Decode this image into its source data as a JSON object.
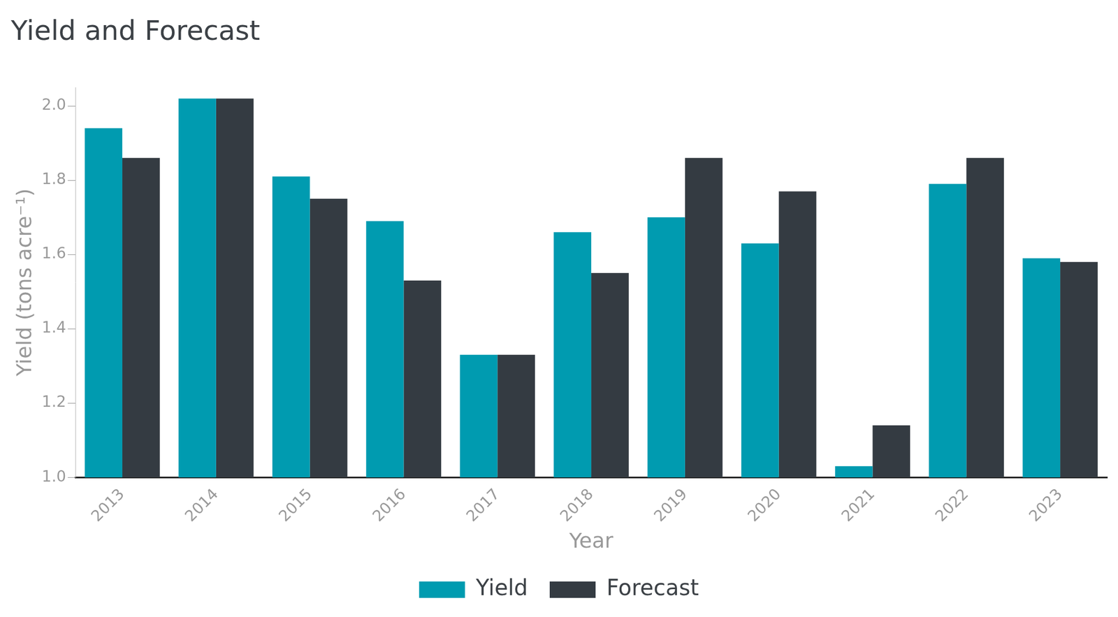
{
  "chart_data": {
    "type": "bar",
    "title": "Yield and Forecast",
    "x_label": "Year",
    "y_label": "Yield (tons acre⁻¹)",
    "categories": [
      "2013",
      "2014",
      "2015",
      "2016",
      "2017",
      "2018",
      "2019",
      "2020",
      "2021",
      "2022",
      "2023"
    ],
    "series": [
      {
        "name": "Yield",
        "color": "#009bb0",
        "values": [
          1.94,
          2.02,
          1.81,
          1.69,
          1.33,
          1.66,
          1.7,
          1.63,
          1.03,
          1.79,
          1.59
        ]
      },
      {
        "name": "Forecast",
        "color": "#343b42",
        "values": [
          1.86,
          2.02,
          1.75,
          1.53,
          1.33,
          1.55,
          1.86,
          1.77,
          1.14,
          1.86,
          1.58
        ]
      }
    ],
    "ylim": [
      1.0,
      2.05
    ],
    "yticks": [
      {
        "value": 1,
        "label": "1.0"
      },
      1.2,
      1.4,
      1.6,
      1.8,
      {
        "value": 2,
        "label": "2.0"
      }
    ],
    "grid": false,
    "legend": "bottom"
  }
}
